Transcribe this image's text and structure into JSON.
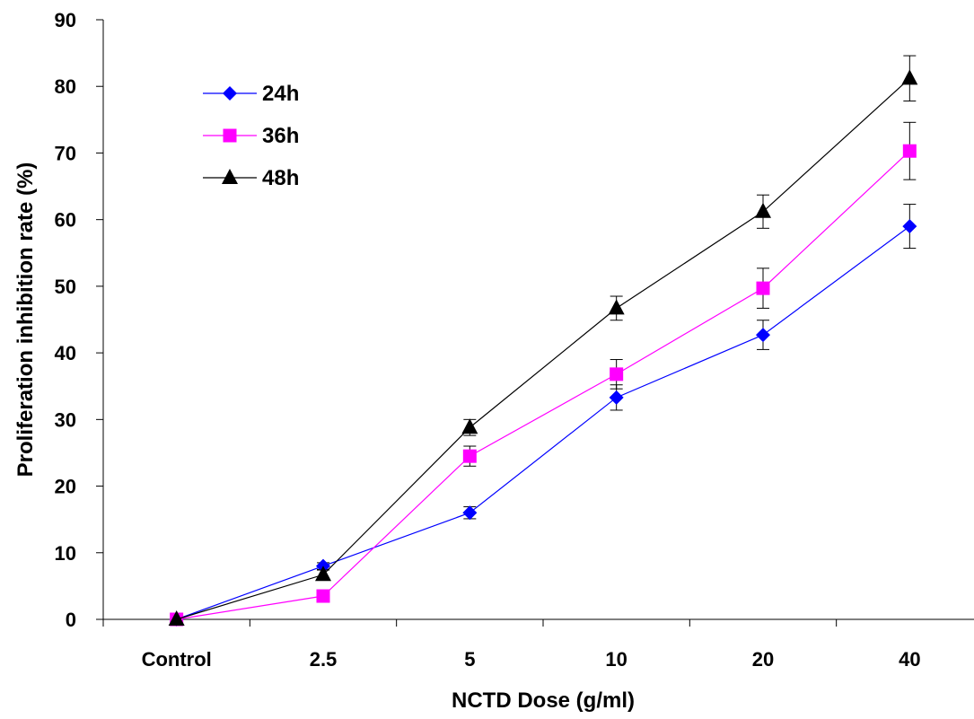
{
  "chart_data": {
    "type": "line",
    "title": "",
    "xlabel": "NCTD Dose (g/ml)",
    "ylabel": "Proliferation inhibition rate (%)",
    "categories": [
      "Control",
      "2.5",
      "5",
      "10",
      "20",
      "40"
    ],
    "ylim": [
      0,
      90
    ],
    "yticks": [
      0,
      10,
      20,
      30,
      40,
      50,
      60,
      70,
      80,
      90
    ],
    "grid": false,
    "legend_position": "top-left",
    "series": [
      {
        "name": "24h",
        "color": "#0000ff",
        "marker": "diamond",
        "values": [
          0,
          8,
          16,
          33.3,
          42.7,
          59
        ],
        "errors": [
          0,
          0.5,
          0.9,
          1.9,
          2.2,
          3.3
        ]
      },
      {
        "name": "36h",
        "color": "#ff00ff",
        "marker": "square",
        "values": [
          0,
          3.5,
          24.5,
          36.8,
          49.7,
          70.3
        ],
        "errors": [
          0,
          0.6,
          1.5,
          2.2,
          3,
          4.3
        ]
      },
      {
        "name": "48h",
        "color": "#000000",
        "marker": "triangle",
        "values": [
          0,
          6.7,
          28.8,
          46.7,
          61.2,
          81.2
        ],
        "errors": [
          0,
          0.7,
          1.2,
          1.8,
          2.5,
          3.4
        ]
      }
    ]
  }
}
